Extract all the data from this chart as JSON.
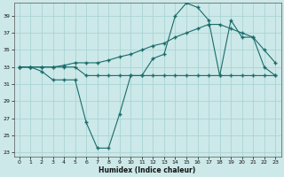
{
  "xlabel": "Humidex (Indice chaleur)",
  "bg_color": "#cce8e8",
  "grid_color": "#aad4d4",
  "line_color": "#1a6b6b",
  "xlim": [
    -0.5,
    23.5
  ],
  "ylim": [
    22.5,
    40.5
  ],
  "xticks": [
    0,
    1,
    2,
    3,
    4,
    5,
    6,
    7,
    8,
    9,
    10,
    11,
    12,
    13,
    14,
    15,
    16,
    17,
    18,
    19,
    20,
    21,
    22,
    23
  ],
  "yticks": [
    23,
    25,
    27,
    29,
    31,
    33,
    35,
    37,
    39
  ],
  "series1_x": [
    0,
    1,
    2,
    3,
    4,
    5,
    6,
    7,
    8,
    9,
    10,
    11,
    12,
    13,
    14,
    15,
    16,
    17,
    18,
    19,
    20,
    21,
    22,
    23
  ],
  "series1_y": [
    33,
    33,
    33,
    33,
    33,
    33,
    32,
    32,
    32,
    32,
    32,
    32,
    32,
    32,
    32,
    32,
    32,
    32,
    32,
    32,
    32,
    32,
    32,
    32
  ],
  "series2_x": [
    0,
    1,
    2,
    3,
    4,
    5,
    6,
    7,
    8,
    9,
    10,
    11,
    12,
    13,
    14,
    15,
    16,
    17,
    18,
    19,
    20,
    21,
    22,
    23
  ],
  "series2_y": [
    33,
    33,
    33,
    33,
    33.2,
    33.5,
    33.5,
    33.5,
    33.8,
    34.2,
    34.5,
    35.0,
    35.5,
    35.8,
    36.5,
    37.0,
    37.5,
    38.0,
    38.0,
    37.5,
    37.0,
    36.5,
    35.0,
    33.5
  ],
  "series3_x": [
    0,
    1,
    2,
    3,
    4,
    5,
    6,
    7,
    8,
    9,
    10,
    11,
    12,
    13,
    14,
    15,
    16,
    17,
    18,
    19,
    20,
    21,
    22,
    23
  ],
  "series3_y": [
    33,
    33,
    32.5,
    31.5,
    31.5,
    31.5,
    26.5,
    23.5,
    23.5,
    27.5,
    32,
    32,
    34,
    34.5,
    39,
    40.5,
    40,
    38.5,
    32,
    38.5,
    36.5,
    36.5,
    33,
    32
  ],
  "marker": "+",
  "markersize": 2.5,
  "linewidth": 0.8
}
